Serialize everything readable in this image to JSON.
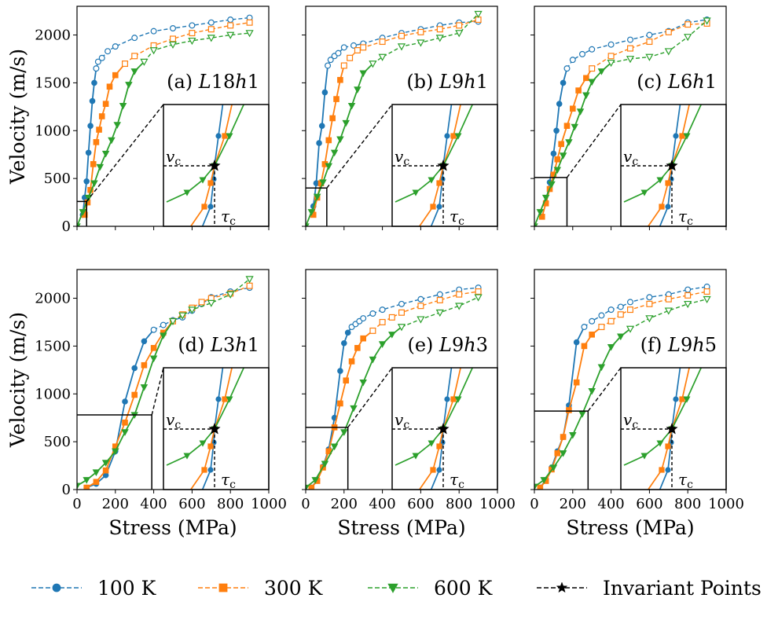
{
  "figure": {
    "x_axis_label": "Stress (MPa)",
    "y_axis_label": "Velocity (m/s)",
    "x_ticks": [
      "0",
      "200",
      "400",
      "600",
      "800",
      "1000"
    ],
    "y_ticks": [
      "0",
      "500",
      "1000",
      "1500",
      "2000"
    ],
    "inset_labels": {
      "vc_base": "v",
      "tc_base": "τ",
      "sub": "c"
    }
  },
  "legend": [
    {
      "label": "100 K",
      "color": "#1f77b4",
      "marker": "circle"
    },
    {
      "label": "300 K",
      "color": "#ff7f0e",
      "marker": "square"
    },
    {
      "label": "600 K",
      "color": "#2ca02c",
      "marker": "triangle-down"
    },
    {
      "label": "Invariant Points",
      "color": "#000000",
      "marker": "star"
    }
  ],
  "colors": {
    "100K": "#1f77b4",
    "300K": "#ff7f0e",
    "600K": "#2ca02c",
    "invariant": "#000000"
  },
  "chart_data": [
    {
      "type": "line",
      "panel_id": "a",
      "label_prefix": "(a) ",
      "label_parts": [
        "L",
        "18",
        "h",
        "1"
      ],
      "xlim": [
        0,
        1000
      ],
      "ylim": [
        0,
        2300
      ],
      "zoom_box": {
        "x": [
          0,
          50
        ],
        "y": [
          0,
          260
        ]
      },
      "series": [
        {
          "name": "100 K",
          "x": [
            30,
            40,
            50,
            60,
            70,
            80,
            90,
            100,
            110,
            130,
            160,
            200,
            300,
            400,
            500,
            600,
            700,
            800,
            900
          ],
          "y": [
            120,
            300,
            470,
            770,
            1050,
            1310,
            1500,
            1650,
            1720,
            1760,
            1830,
            1880,
            1970,
            2040,
            2070,
            2100,
            2130,
            2160,
            2180
          ]
        },
        {
          "name": "300 K",
          "x": [
            40,
            55,
            70,
            85,
            100,
            115,
            130,
            150,
            170,
            200,
            250,
            300,
            400,
            500,
            600,
            700,
            800,
            900
          ],
          "y": [
            120,
            250,
            380,
            650,
            880,
            1010,
            1150,
            1280,
            1460,
            1580,
            1700,
            1780,
            1890,
            1960,
            2020,
            2060,
            2100,
            2130
          ]
        },
        {
          "name": "600 K",
          "x": [
            0,
            30,
            60,
            90,
            120,
            150,
            180,
            210,
            240,
            270,
            300,
            350,
            400,
            500,
            600,
            700,
            800,
            900
          ],
          "y": [
            0,
            150,
            300,
            450,
            620,
            760,
            900,
            1060,
            1260,
            1480,
            1620,
            1720,
            1840,
            1900,
            1940,
            1970,
            2000,
            2020
          ]
        }
      ]
    },
    {
      "type": "line",
      "panel_id": "b",
      "label_prefix": "(b) ",
      "label_parts": [
        "L",
        "9",
        "h",
        "1"
      ],
      "xlim": [
        0,
        1000
      ],
      "ylim": [
        0,
        2300
      ],
      "zoom_box": {
        "x": [
          0,
          110
        ],
        "y": [
          0,
          400
        ]
      },
      "series": [
        {
          "name": "100 K",
          "x": [
            40,
            55,
            70,
            85,
            100,
            115,
            130,
            150,
            170,
            200,
            250,
            300,
            400,
            500,
            600,
            700,
            800,
            900
          ],
          "y": [
            210,
            450,
            870,
            1050,
            1400,
            1680,
            1740,
            1780,
            1810,
            1870,
            1890,
            1910,
            1970,
            2020,
            2060,
            2100,
            2130,
            2140
          ]
        },
        {
          "name": "300 K",
          "x": [
            40,
            60,
            80,
            100,
            120,
            140,
            160,
            180,
            200,
            230,
            270,
            300,
            400,
            500,
            600,
            700,
            800,
            900
          ],
          "y": [
            120,
            300,
            450,
            650,
            900,
            1130,
            1330,
            1530,
            1680,
            1760,
            1840,
            1870,
            1930,
            1990,
            2030,
            2060,
            2100,
            2160
          ]
        },
        {
          "name": "600 K",
          "x": [
            0,
            30,
            60,
            90,
            120,
            150,
            180,
            210,
            240,
            270,
            300,
            350,
            400,
            500,
            600,
            700,
            800,
            900
          ],
          "y": [
            0,
            150,
            310,
            460,
            630,
            770,
            910,
            1080,
            1260,
            1430,
            1600,
            1700,
            1770,
            1880,
            1920,
            1970,
            2020,
            2220
          ]
        }
      ]
    },
    {
      "type": "line",
      "panel_id": "c",
      "label_prefix": "(c) ",
      "label_parts": [
        "L",
        "6",
        "h",
        "1"
      ],
      "xlim": [
        0,
        1000
      ],
      "ylim": [
        0,
        2300
      ],
      "zoom_box": {
        "x": [
          0,
          170
        ],
        "y": [
          0,
          510
        ]
      },
      "series": [
        {
          "name": "100 K",
          "x": [
            60,
            80,
            100,
            115,
            130,
            150,
            170,
            200,
            250,
            300,
            400,
            500,
            600,
            700,
            800,
            900
          ],
          "y": [
            250,
            460,
            760,
            1000,
            1280,
            1500,
            1650,
            1740,
            1800,
            1850,
            1900,
            1950,
            2000,
            2040,
            2130,
            2160
          ]
        },
        {
          "name": "300 K",
          "x": [
            40,
            60,
            80,
            100,
            120,
            140,
            170,
            200,
            230,
            270,
            300,
            400,
            500,
            600,
            700,
            800,
            900
          ],
          "y": [
            100,
            240,
            390,
            540,
            700,
            860,
            1050,
            1230,
            1420,
            1550,
            1650,
            1780,
            1860,
            1930,
            2030,
            2110,
            2120
          ]
        },
        {
          "name": "600 K",
          "x": [
            0,
            30,
            60,
            90,
            120,
            150,
            180,
            210,
            240,
            270,
            300,
            350,
            400,
            500,
            600,
            700,
            800,
            900
          ],
          "y": [
            0,
            150,
            300,
            440,
            590,
            740,
            880,
            1040,
            1200,
            1370,
            1510,
            1620,
            1710,
            1750,
            1770,
            1830,
            1980,
            2150
          ]
        }
      ]
    },
    {
      "type": "line",
      "panel_id": "d",
      "label_prefix": "(d) ",
      "label_parts": [
        "L",
        "3",
        "h",
        "1"
      ],
      "xlim": [
        0,
        1000
      ],
      "ylim": [
        0,
        2300
      ],
      "zoom_box": {
        "x": [
          0,
          390
        ],
        "y": [
          0,
          780
        ]
      },
      "series": [
        {
          "name": "100 K",
          "x": [
            50,
            100,
            150,
            200,
            250,
            300,
            350,
            400,
            450,
            500,
            550,
            600,
            650,
            700,
            800,
            900
          ],
          "y": [
            20,
            60,
            150,
            400,
            920,
            1270,
            1550,
            1670,
            1720,
            1770,
            1800,
            1870,
            1940,
            2010,
            2070,
            2110
          ]
        },
        {
          "name": "300 K",
          "x": [
            50,
            100,
            150,
            200,
            250,
            300,
            350,
            400,
            450,
            500,
            550,
            600,
            650,
            700,
            800,
            900
          ],
          "y": [
            20,
            80,
            200,
            450,
            700,
            990,
            1300,
            1480,
            1640,
            1760,
            1830,
            1900,
            1960,
            2000,
            2050,
            2130
          ]
        },
        {
          "name": "600 K",
          "x": [
            0,
            50,
            100,
            150,
            200,
            250,
            300,
            350,
            400,
            450,
            500,
            550,
            600,
            700,
            800,
            900
          ],
          "y": [
            40,
            100,
            180,
            280,
            400,
            600,
            780,
            1070,
            1370,
            1610,
            1760,
            1820,
            1880,
            1950,
            2040,
            2200
          ]
        }
      ]
    },
    {
      "type": "line",
      "panel_id": "e",
      "label_prefix": "(e) ",
      "label_parts": [
        "L",
        "9",
        "h",
        "3"
      ],
      "xlim": [
        0,
        1000
      ],
      "ylim": [
        0,
        2300
      ],
      "zoom_box": {
        "x": [
          0,
          220
        ],
        "y": [
          0,
          650
        ]
      },
      "series": [
        {
          "name": "100 K",
          "x": [
            30,
            60,
            90,
            120,
            150,
            180,
            200,
            220,
            240,
            260,
            280,
            300,
            350,
            400,
            500,
            600,
            700,
            800,
            900
          ],
          "y": [
            20,
            100,
            240,
            420,
            750,
            1240,
            1530,
            1640,
            1700,
            1730,
            1760,
            1790,
            1840,
            1880,
            1940,
            1990,
            2040,
            2090,
            2110
          ]
        },
        {
          "name": "300 K",
          "x": [
            30,
            60,
            90,
            120,
            150,
            180,
            210,
            240,
            270,
            300,
            350,
            400,
            450,
            500,
            600,
            700,
            800,
            900
          ],
          "y": [
            20,
            90,
            230,
            400,
            650,
            900,
            1140,
            1340,
            1480,
            1580,
            1660,
            1750,
            1800,
            1850,
            1920,
            1980,
            2040,
            2070
          ]
        },
        {
          "name": "600 K",
          "x": [
            0,
            50,
            100,
            150,
            200,
            250,
            300,
            350,
            400,
            450,
            500,
            600,
            700,
            800,
            900
          ],
          "y": [
            20,
            100,
            270,
            450,
            600,
            850,
            1120,
            1360,
            1520,
            1620,
            1700,
            1780,
            1850,
            1920,
            2010
          ]
        }
      ]
    },
    {
      "type": "line",
      "panel_id": "f",
      "label_prefix": "(f) ",
      "label_parts": [
        "L",
        "9",
        "h",
        "5"
      ],
      "xlim": [
        0,
        1000
      ],
      "ylim": [
        0,
        2300
      ],
      "zoom_box": {
        "x": [
          0,
          280
        ],
        "y": [
          0,
          820
        ]
      },
      "series": [
        {
          "name": "100 K",
          "x": [
            30,
            60,
            90,
            120,
            150,
            180,
            220,
            260,
            300,
            350,
            400,
            450,
            500,
            600,
            700,
            800,
            900
          ],
          "y": [
            20,
            100,
            230,
            400,
            550,
            880,
            1540,
            1700,
            1760,
            1820,
            1880,
            1910,
            1960,
            2010,
            2040,
            2090,
            2120
          ]
        },
        {
          "name": "300 K",
          "x": [
            30,
            60,
            90,
            120,
            150,
            180,
            220,
            260,
            300,
            350,
            400,
            450,
            500,
            600,
            700,
            800,
            900
          ],
          "y": [
            20,
            90,
            210,
            380,
            550,
            830,
            1120,
            1500,
            1620,
            1700,
            1760,
            1830,
            1880,
            1940,
            1990,
            2030,
            2070
          ]
        },
        {
          "name": "600 K",
          "x": [
            0,
            50,
            100,
            150,
            200,
            250,
            300,
            350,
            400,
            450,
            500,
            600,
            700,
            800,
            900
          ],
          "y": [
            30,
            100,
            230,
            380,
            570,
            790,
            1030,
            1280,
            1490,
            1600,
            1680,
            1790,
            1870,
            1940,
            1990
          ]
        }
      ]
    }
  ]
}
